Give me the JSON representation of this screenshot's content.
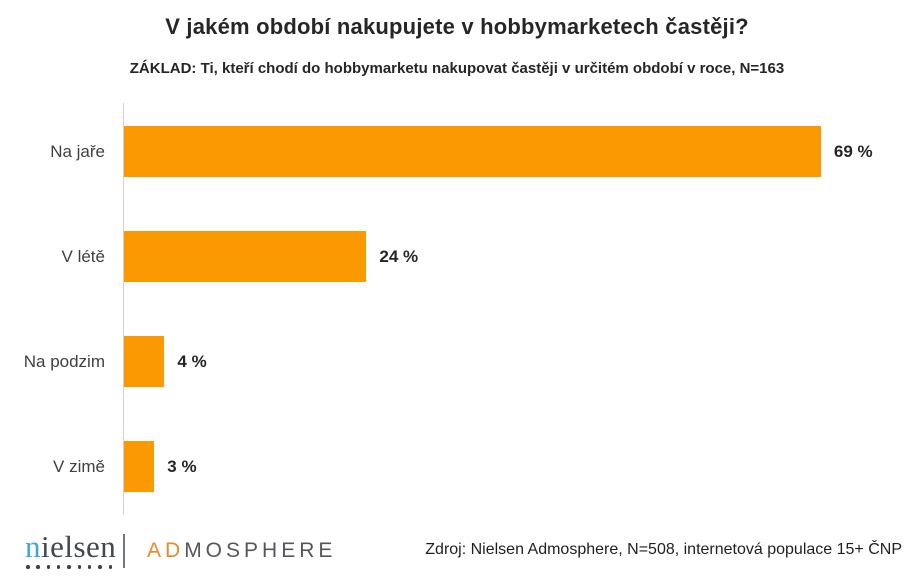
{
  "header": {
    "title": "V jakém období nakupujete v hobbymarketech častěji?",
    "subtitle": "ZÁKLAD: Ti, kteří chodí do hobbymarketu nakupovat častěji v určitém období v roce, N=163"
  },
  "chart_data": {
    "type": "bar",
    "orientation": "horizontal",
    "title": "V jakém období nakupujete v hobbymarketech častěji?",
    "subtitle": "ZÁKLAD: Ti, kteří chodí do hobbymarketu nakupovat častěji v určitém období v roce, N=163",
    "categories": [
      "Na jaře",
      "V létě",
      "Na podzim",
      "V zimě"
    ],
    "values": [
      69,
      24,
      4,
      3
    ],
    "value_labels": [
      "69 %",
      "24 %",
      "4 %",
      "3 %"
    ],
    "unit": "%",
    "bar_color": "#fb9902",
    "grid": false,
    "legend": false,
    "value_axis_visible": false
  },
  "footer": {
    "nielsen_logo": {
      "first_letter": "n",
      "rest": "ielsen",
      "dots": 9,
      "blue": "#3da5dc",
      "dark": "#41484f"
    },
    "admosphere_logo": {
      "prefix": "AD",
      "rest": "MOSPHERE",
      "orange": "#e78a2e",
      "dark": "#55575b"
    },
    "source": "Zdroj: Nielsen Admosphere, N=508, internetová populace 15+ ČNP"
  }
}
